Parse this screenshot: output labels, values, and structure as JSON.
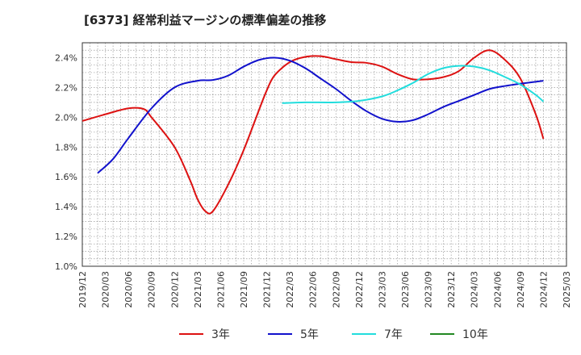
{
  "chart_data": {
    "type": "line",
    "title": "[6373]  経常利益マージンの標準偏差の推移",
    "xlabel": "",
    "ylabel": "",
    "x_ticks": [
      "2019/12",
      "2020/03",
      "2020/06",
      "2020/09",
      "2020/12",
      "2021/03",
      "2021/06",
      "2021/09",
      "2021/12",
      "2022/03",
      "2022/06",
      "2022/09",
      "2022/12",
      "2023/03",
      "2023/06",
      "2023/09",
      "2023/12",
      "2024/03",
      "2024/06",
      "2024/09",
      "2024/12",
      "2025/03"
    ],
    "y_ticks": [
      "1.0%",
      "1.2%",
      "1.4%",
      "1.6%",
      "1.8%",
      "2.0%",
      "2.2%",
      "2.4%"
    ],
    "ylim": [
      1.0,
      2.5
    ],
    "grid": true,
    "legend_position": "bottom",
    "series": [
      {
        "name": "3年",
        "color": "#dd1111",
        "points": [
          [
            "2019/12",
            1.975
          ],
          [
            "2020/03",
            2.02
          ],
          [
            "2020/06",
            2.06
          ],
          [
            "2020/08",
            2.055
          ],
          [
            "2020/09",
            2.0
          ],
          [
            "2020/12",
            1.8
          ],
          [
            "2021/02",
            1.58
          ],
          [
            "2021/03",
            1.45
          ],
          [
            "2021/04",
            1.37
          ],
          [
            "2021/05",
            1.37
          ],
          [
            "2021/07",
            1.55
          ],
          [
            "2021/09",
            1.78
          ],
          [
            "2021/11",
            2.05
          ],
          [
            "2021/12",
            2.18
          ],
          [
            "2022/01",
            2.28
          ],
          [
            "2022/03",
            2.37
          ],
          [
            "2022/05",
            2.405
          ],
          [
            "2022/07",
            2.41
          ],
          [
            "2022/09",
            2.39
          ],
          [
            "2022/11",
            2.37
          ],
          [
            "2023/01",
            2.365
          ],
          [
            "2023/03",
            2.34
          ],
          [
            "2023/05",
            2.29
          ],
          [
            "2023/07",
            2.255
          ],
          [
            "2023/09",
            2.255
          ],
          [
            "2023/11",
            2.27
          ],
          [
            "2024/01",
            2.31
          ],
          [
            "2024/03",
            2.4
          ],
          [
            "2024/05",
            2.45
          ],
          [
            "2024/07",
            2.385
          ],
          [
            "2024/09",
            2.26
          ],
          [
            "2024/11",
            2.02
          ],
          [
            "2024/12",
            1.855
          ]
        ]
      },
      {
        "name": "5年",
        "color": "#1111cc",
        "points": [
          [
            "2020/02",
            1.625
          ],
          [
            "2020/04",
            1.72
          ],
          [
            "2020/06",
            1.86
          ],
          [
            "2020/09",
            2.06
          ],
          [
            "2020/12",
            2.2
          ],
          [
            "2021/03",
            2.245
          ],
          [
            "2021/05",
            2.25
          ],
          [
            "2021/07",
            2.28
          ],
          [
            "2021/09",
            2.34
          ],
          [
            "2021/11",
            2.385
          ],
          [
            "2022/01",
            2.4
          ],
          [
            "2022/03",
            2.38
          ],
          [
            "2022/05",
            2.33
          ],
          [
            "2022/07",
            2.26
          ],
          [
            "2022/09",
            2.19
          ],
          [
            "2022/11",
            2.11
          ],
          [
            "2023/01",
            2.04
          ],
          [
            "2023/03",
            1.99
          ],
          [
            "2023/05",
            1.97
          ],
          [
            "2023/07",
            1.98
          ],
          [
            "2023/09",
            2.02
          ],
          [
            "2023/11",
            2.07
          ],
          [
            "2024/01",
            2.11
          ],
          [
            "2024/03",
            2.15
          ],
          [
            "2024/05",
            2.19
          ],
          [
            "2024/07",
            2.21
          ],
          [
            "2024/09",
            2.225
          ],
          [
            "2024/12",
            2.245
          ]
        ]
      },
      {
        "name": "7年",
        "color": "#22dddd",
        "points": [
          [
            "2022/02",
            2.095
          ],
          [
            "2022/05",
            2.1
          ],
          [
            "2022/09",
            2.1
          ],
          [
            "2022/12",
            2.11
          ],
          [
            "2023/03",
            2.14
          ],
          [
            "2023/05",
            2.18
          ],
          [
            "2023/07",
            2.23
          ],
          [
            "2023/09",
            2.29
          ],
          [
            "2023/11",
            2.33
          ],
          [
            "2024/01",
            2.345
          ],
          [
            "2024/03",
            2.34
          ],
          [
            "2024/05",
            2.315
          ],
          [
            "2024/07",
            2.27
          ],
          [
            "2024/09",
            2.22
          ],
          [
            "2024/11",
            2.15
          ],
          [
            "2024/12",
            2.105
          ]
        ]
      },
      {
        "name": "10年",
        "color": "#228822",
        "points": []
      }
    ]
  }
}
